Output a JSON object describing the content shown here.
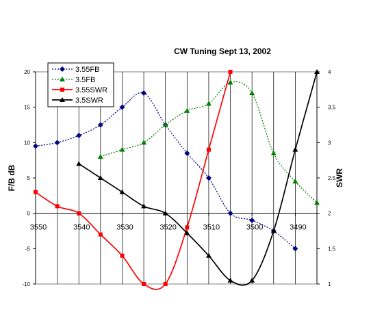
{
  "chart_data": {
    "type": "line",
    "title": "CW Tuning Sept 13, 2002",
    "ylabel_left": "F/B dB",
    "ylabel_right": "SWR",
    "ylim_left": [
      -10,
      20
    ],
    "yticks_left": [
      "20",
      "15",
      "10",
      "5",
      "0",
      "-5",
      "-10"
    ],
    "ylim_right": [
      1,
      4
    ],
    "yticks_right": [
      "4",
      "3.5",
      "3",
      "2.5",
      "2",
      "1.5",
      "1"
    ],
    "x_tick_labels": [
      "3550",
      "3540",
      "3530",
      "3520",
      "3510",
      "3500",
      "3490"
    ],
    "x_reversed": true,
    "grid": "vertical",
    "legend_position": "top-left",
    "series": [
      {
        "name": "3.55FB",
        "axis": "left",
        "color": "#000080",
        "marker": "diamond",
        "line": "dotted",
        "smooth": true,
        "x": [
          3550,
          3545,
          3540,
          3535,
          3530,
          3525,
          3520,
          3515,
          3510,
          3505,
          3500,
          3495,
          3490
        ],
        "y": [
          9.5,
          10,
          11,
          12.5,
          15,
          17,
          12.5,
          8.5,
          5,
          0,
          -1,
          -2.5,
          -5
        ]
      },
      {
        "name": "3.5FB",
        "axis": "left",
        "color": "#008000",
        "marker": "triangle",
        "line": "dotted",
        "smooth": true,
        "x": [
          3535,
          3530,
          3525,
          3520,
          3515,
          3510,
          3505,
          3500,
          3495,
          3490,
          3485
        ],
        "y": [
          8,
          9,
          10,
          12.5,
          14.5,
          15.5,
          18.5,
          17,
          8.5,
          4.5,
          1.5
        ]
      },
      {
        "name": "3.55SWR",
        "axis": "right",
        "color": "#ff0000",
        "marker": "square",
        "line": "solid",
        "smooth": true,
        "x": [
          3550,
          3545,
          3540,
          3535,
          3530,
          3525,
          3520,
          3515,
          3510,
          3505
        ],
        "y": [
          2.3,
          2.1,
          2.0,
          1.7,
          1.4,
          1.0,
          1.0,
          1.8,
          2.9,
          4.0
        ]
      },
      {
        "name": "3.5SWR",
        "axis": "right",
        "color": "#000000",
        "marker": "triangle",
        "line": "solid",
        "smooth": true,
        "x": [
          3540,
          3535,
          3530,
          3525,
          3520,
          3515,
          3510,
          3505,
          3500,
          3495,
          3490,
          3485
        ],
        "y": [
          2.7,
          2.5,
          2.3,
          2.1,
          2.0,
          1.72,
          1.4,
          1.05,
          1.05,
          1.75,
          2.9,
          4.0
        ]
      }
    ]
  }
}
